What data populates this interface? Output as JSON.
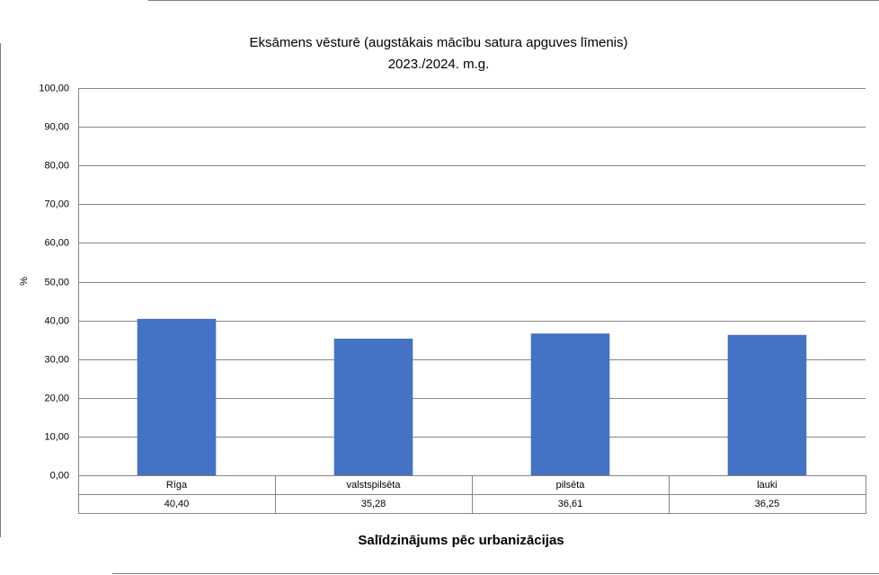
{
  "chart_data": {
    "type": "bar",
    "title": "Eksāmens vēsturē (augstākais mācību satura apguves līmenis)",
    "subtitle": "2023./2024. m.g.",
    "y_label": "%",
    "x_label": "Salīdzinājums pēc urbanizācijas",
    "categories": [
      "Rīga",
      "valstspilsēta",
      "pilsēta",
      "lauki"
    ],
    "values": [
      40.4,
      35.28,
      36.61,
      36.25
    ],
    "value_labels": [
      "40,40",
      "35,28",
      "36,61",
      "36,25"
    ],
    "color": "#4472c4",
    "ylim": [
      0,
      100
    ],
    "yticks": [
      {
        "value": 0,
        "label": "0,00"
      },
      {
        "value": 10,
        "label": "10,00"
      },
      {
        "value": 20,
        "label": "20,00"
      },
      {
        "value": 30,
        "label": "30,00"
      },
      {
        "value": 40,
        "label": "40,00"
      },
      {
        "value": 50,
        "label": "50,00"
      },
      {
        "value": 60,
        "label": "60,00"
      },
      {
        "value": 70,
        "label": "70,00"
      },
      {
        "value": 80,
        "label": "80,00"
      },
      {
        "value": 90,
        "label": "90,00"
      },
      {
        "value": 100,
        "label": "100,00"
      }
    ],
    "grid": true
  }
}
